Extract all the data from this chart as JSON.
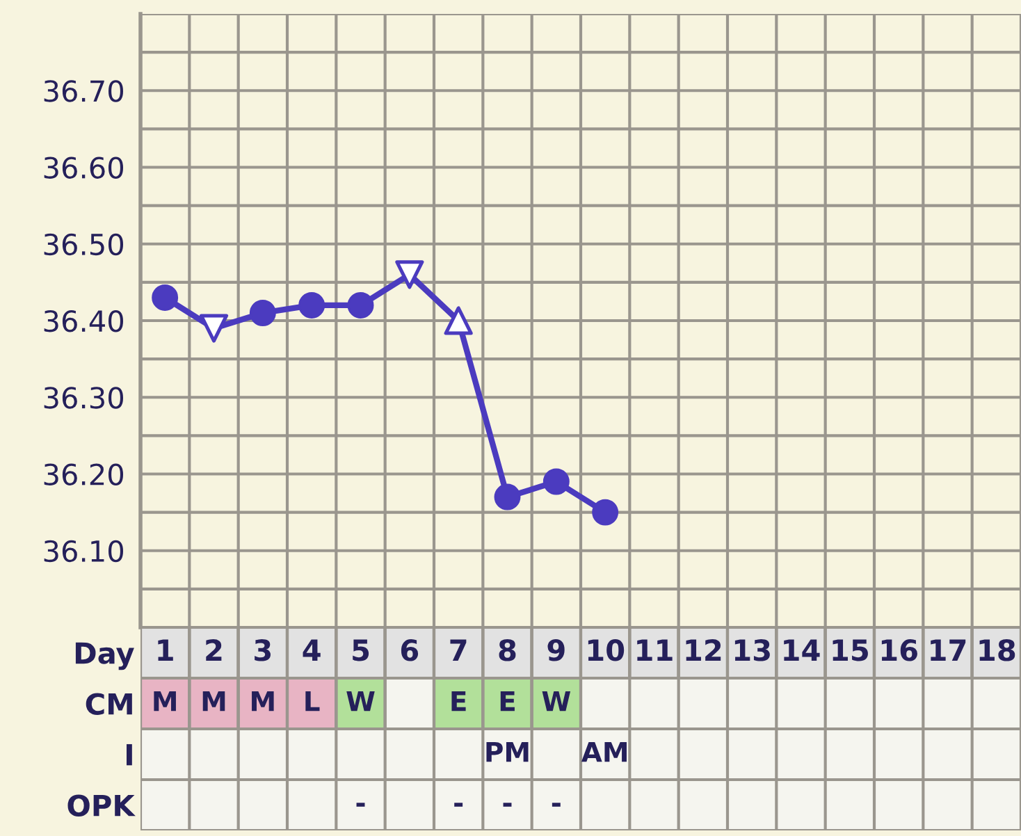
{
  "chart_data": [
    {
      "type": "line",
      "categories": [
        "1",
        "2",
        "3",
        "4",
        "5",
        "6",
        "7",
        "8",
        "9",
        "10",
        "11",
        "12",
        "13",
        "14",
        "15",
        "16",
        "17",
        "18"
      ],
      "series": [
        {
          "type": "line",
          "color": "#4b3bbf",
          "marker": "none",
          "values": [
            36.43,
            36.39,
            36.41,
            36.42,
            36.42,
            36.46,
            36.4,
            36.17,
            36.19,
            36.15,
            null,
            null,
            null,
            null,
            null,
            null,
            null,
            null
          ]
        },
        {
          "type": "scatter",
          "color": "#4b3bbf",
          "marker": "circle",
          "values": [
            36.43,
            null,
            36.41,
            36.42,
            36.42,
            null,
            null,
            36.17,
            36.19,
            36.15,
            null,
            null,
            null,
            null,
            null,
            null,
            null,
            null
          ]
        },
        {
          "type": "scatter",
          "color": "#4b3bbf",
          "marker": "triangle_down",
          "values": [
            null,
            36.39,
            null,
            null,
            null,
            36.46,
            null,
            null,
            null,
            null,
            null,
            null,
            null,
            null,
            null,
            null,
            null,
            null
          ]
        },
        {
          "type": "scatter",
          "color": "#4b3bbf",
          "marker": "triangle",
          "values": [
            null,
            null,
            null,
            null,
            null,
            null,
            36.4,
            null,
            null,
            null,
            null,
            null,
            null,
            null,
            null,
            null,
            null,
            null
          ]
        }
      ],
      "ylim": [
        36.0,
        36.8
      ],
      "yticks": [
        {
          "value": 36.0,
          "label": null
        },
        {
          "value": 36.05,
          "label": null
        },
        {
          "value": 36.1,
          "label": "36.10"
        },
        {
          "value": 36.15,
          "label": null
        },
        {
          "value": 36.2,
          "label": "36.20"
        },
        {
          "value": 36.25,
          "label": null
        },
        {
          "value": 36.3,
          "label": "36.30"
        },
        {
          "value": 36.35,
          "label": null
        },
        {
          "value": 36.4,
          "label": "36.40"
        },
        {
          "value": 36.45,
          "label": null
        },
        {
          "value": 36.5,
          "label": "36.50"
        },
        {
          "value": 36.55,
          "label": null
        },
        {
          "value": 36.6,
          "label": "36.60"
        },
        {
          "value": 36.65,
          "label": null
        },
        {
          "value": 36.7,
          "label": "36.70"
        },
        {
          "value": 36.75,
          "label": null
        },
        {
          "value": 36.8,
          "label": null
        }
      ],
      "grid": true,
      "tick_labels": "y"
    },
    {
      "type": "heatmap",
      "xlabel": "Day",
      "categories": [
        "1",
        "2",
        "3",
        "4",
        "5",
        "6",
        "7",
        "8",
        "9",
        "10",
        "11",
        "12",
        "13",
        "14",
        "15",
        "16",
        "17",
        "18"
      ],
      "y_categories": [
        "CM",
        "I",
        "OPK"
      ],
      "cells": [
        [
          null,
          null,
          null,
          null,
          null,
          null,
          null,
          null,
          null,
          null,
          null,
          null,
          null,
          null,
          null,
          null,
          null,
          null
        ],
        [
          null,
          null,
          null,
          null,
          null,
          null,
          null,
          null,
          null,
          null,
          null,
          null,
          null,
          null,
          null,
          null,
          null,
          null
        ],
        [
          null,
          null,
          null,
          null,
          null,
          null,
          null,
          null,
          null,
          null,
          null,
          null,
          null,
          null,
          null,
          null,
          null,
          null
        ]
      ],
      "cell_labels": [
        [
          "M",
          "M",
          "M",
          "L",
          "W",
          null,
          "E",
          "E",
          "W",
          null,
          null,
          null,
          null,
          null,
          null,
          null,
          null,
          null
        ],
        [
          null,
          null,
          null,
          null,
          null,
          null,
          null,
          "PM",
          null,
          "AM",
          null,
          null,
          null,
          null,
          null,
          null,
          null,
          null
        ],
        [
          null,
          null,
          null,
          null,
          "-",
          null,
          "-",
          "-",
          "-",
          null,
          null,
          null,
          null,
          null,
          null,
          null,
          null,
          null
        ]
      ],
      "colors": [
        [
          "#e8b4c4",
          "#e8b4c4",
          "#e8b4c4",
          "#e8b4c4",
          "#b2e09a",
          null,
          "#b2e09a",
          "#b2e09a",
          "#b2e09a",
          null,
          null,
          null,
          null,
          null,
          null,
          null,
          null,
          null
        ],
        [
          null,
          null,
          null,
          null,
          null,
          null,
          null,
          null,
          null,
          null,
          null,
          null,
          null,
          null,
          null,
          null,
          null,
          null
        ],
        [
          null,
          null,
          null,
          null,
          null,
          null,
          null,
          null,
          null,
          null,
          null,
          null,
          null,
          null,
          null,
          null,
          null,
          null
        ]
      ]
    }
  ]
}
